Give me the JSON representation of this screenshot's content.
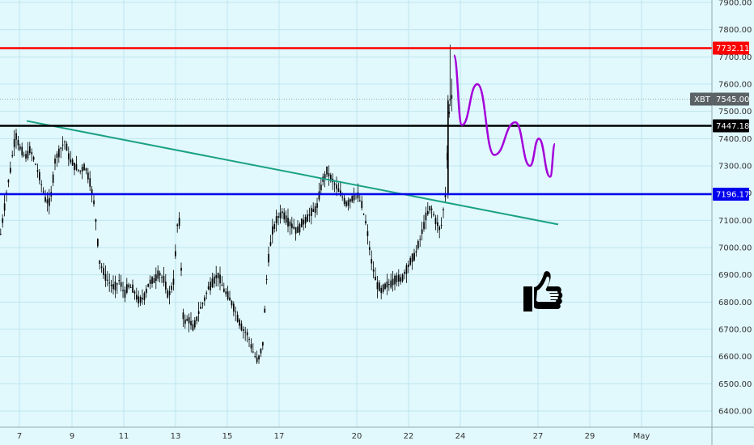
{
  "chart_data": {
    "type": "candlestick",
    "y_axis": {
      "ticks": [
        "7900.00",
        "7800.00",
        "7700.00",
        "7600.00",
        "7500.00",
        "7400.00",
        "7300.00",
        "7200.00",
        "7100.00",
        "7000.00",
        "6900.00",
        "6800.00",
        "6700.00",
        "6600.00",
        "6500.00",
        "6400.00"
      ],
      "ylim": [
        6360,
        7960
      ],
      "side": "right"
    },
    "x_axis": {
      "ticks": [
        "7",
        "9",
        "11",
        "13",
        "15",
        "17",
        "20",
        "22",
        "24",
        "27",
        "29",
        "May"
      ]
    },
    "horizontal_levels": [
      {
        "value": 7732.11,
        "label": "7732.11",
        "color": "#ff0000"
      },
      {
        "value": 7447.18,
        "label": "7447.18",
        "color": "#000000"
      },
      {
        "value": 7196.17,
        "label": "7196.17",
        "color": "#0000ee"
      }
    ],
    "last_price": {
      "symbol": "XBT",
      "value": 7545.0,
      "label": "7545.00"
    },
    "trendline": {
      "from": {
        "x": "7",
        "y": 7465
      },
      "to": {
        "x": "~27.5",
        "y": 7085
      },
      "color": "#1aa184"
    },
    "projection_path": {
      "color": "#a400d9",
      "points_y": [
        7705,
        7450,
        7600,
        7340,
        7460,
        7300,
        7400,
        7260,
        7380
      ]
    },
    "price_series_y": [
      7050,
      7180,
      7290,
      7420,
      7360,
      7330,
      7360,
      7310,
      7250,
      7180,
      7160,
      7320,
      7360,
      7390,
      7320,
      7300,
      7280,
      7300,
      7250,
      7150,
      6950,
      6900,
      6870,
      6850,
      6880,
      6830,
      6860,
      6840,
      6800,
      6820,
      6870,
      6880,
      6910,
      6880,
      6820,
      6880,
      7150,
      6720,
      6740,
      6700,
      6760,
      6800,
      6850,
      6880,
      6900,
      6850,
      6820,
      6790,
      6740,
      6700,
      6680,
      6620,
      6580,
      6640,
      6940,
      7060,
      7110,
      7130,
      7100,
      7080,
      7060,
      7090,
      7110,
      7130,
      7150,
      7240,
      7280,
      7250,
      7220,
      7190,
      7160,
      7180,
      7200,
      7160,
      7080,
      6950,
      6870,
      6840,
      6860,
      6870,
      6890,
      6880,
      6920,
      6950,
      6980,
      7040,
      7110,
      7150,
      7100,
      7060,
      7200,
      7600
    ],
    "annotations": [
      "thumbs-up-icon"
    ],
    "colors": {
      "background": "#e1f8fd",
      "candles": "#000000",
      "grid": "#bfe6ee"
    }
  }
}
